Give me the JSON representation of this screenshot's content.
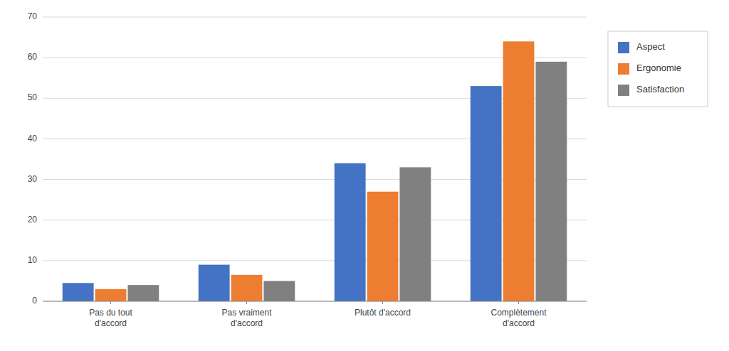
{
  "chart_data": {
    "type": "bar",
    "categories": [
      "Pas du tout\nd'accord",
      "Pas vraiment\nd'accord",
      "Plutôt d'accord",
      "Complètement\nd'accord"
    ],
    "series": [
      {
        "name": "Aspect",
        "color": "#4472C4",
        "values": [
          4.5,
          9.0,
          34.0,
          53.0
        ]
      },
      {
        "name": "Ergonomie",
        "color": "#ED7D31",
        "values": [
          3.0,
          6.5,
          27.0,
          64.0
        ]
      },
      {
        "name": "Satisfaction",
        "color": "#808080",
        "values": [
          4.0,
          5.0,
          33.0,
          59.0
        ]
      }
    ],
    "ylim": [
      0,
      70
    ],
    "yticks": [
      0,
      10,
      20,
      30,
      40,
      50,
      60,
      70
    ],
    "grid": true,
    "legend": "right"
  }
}
